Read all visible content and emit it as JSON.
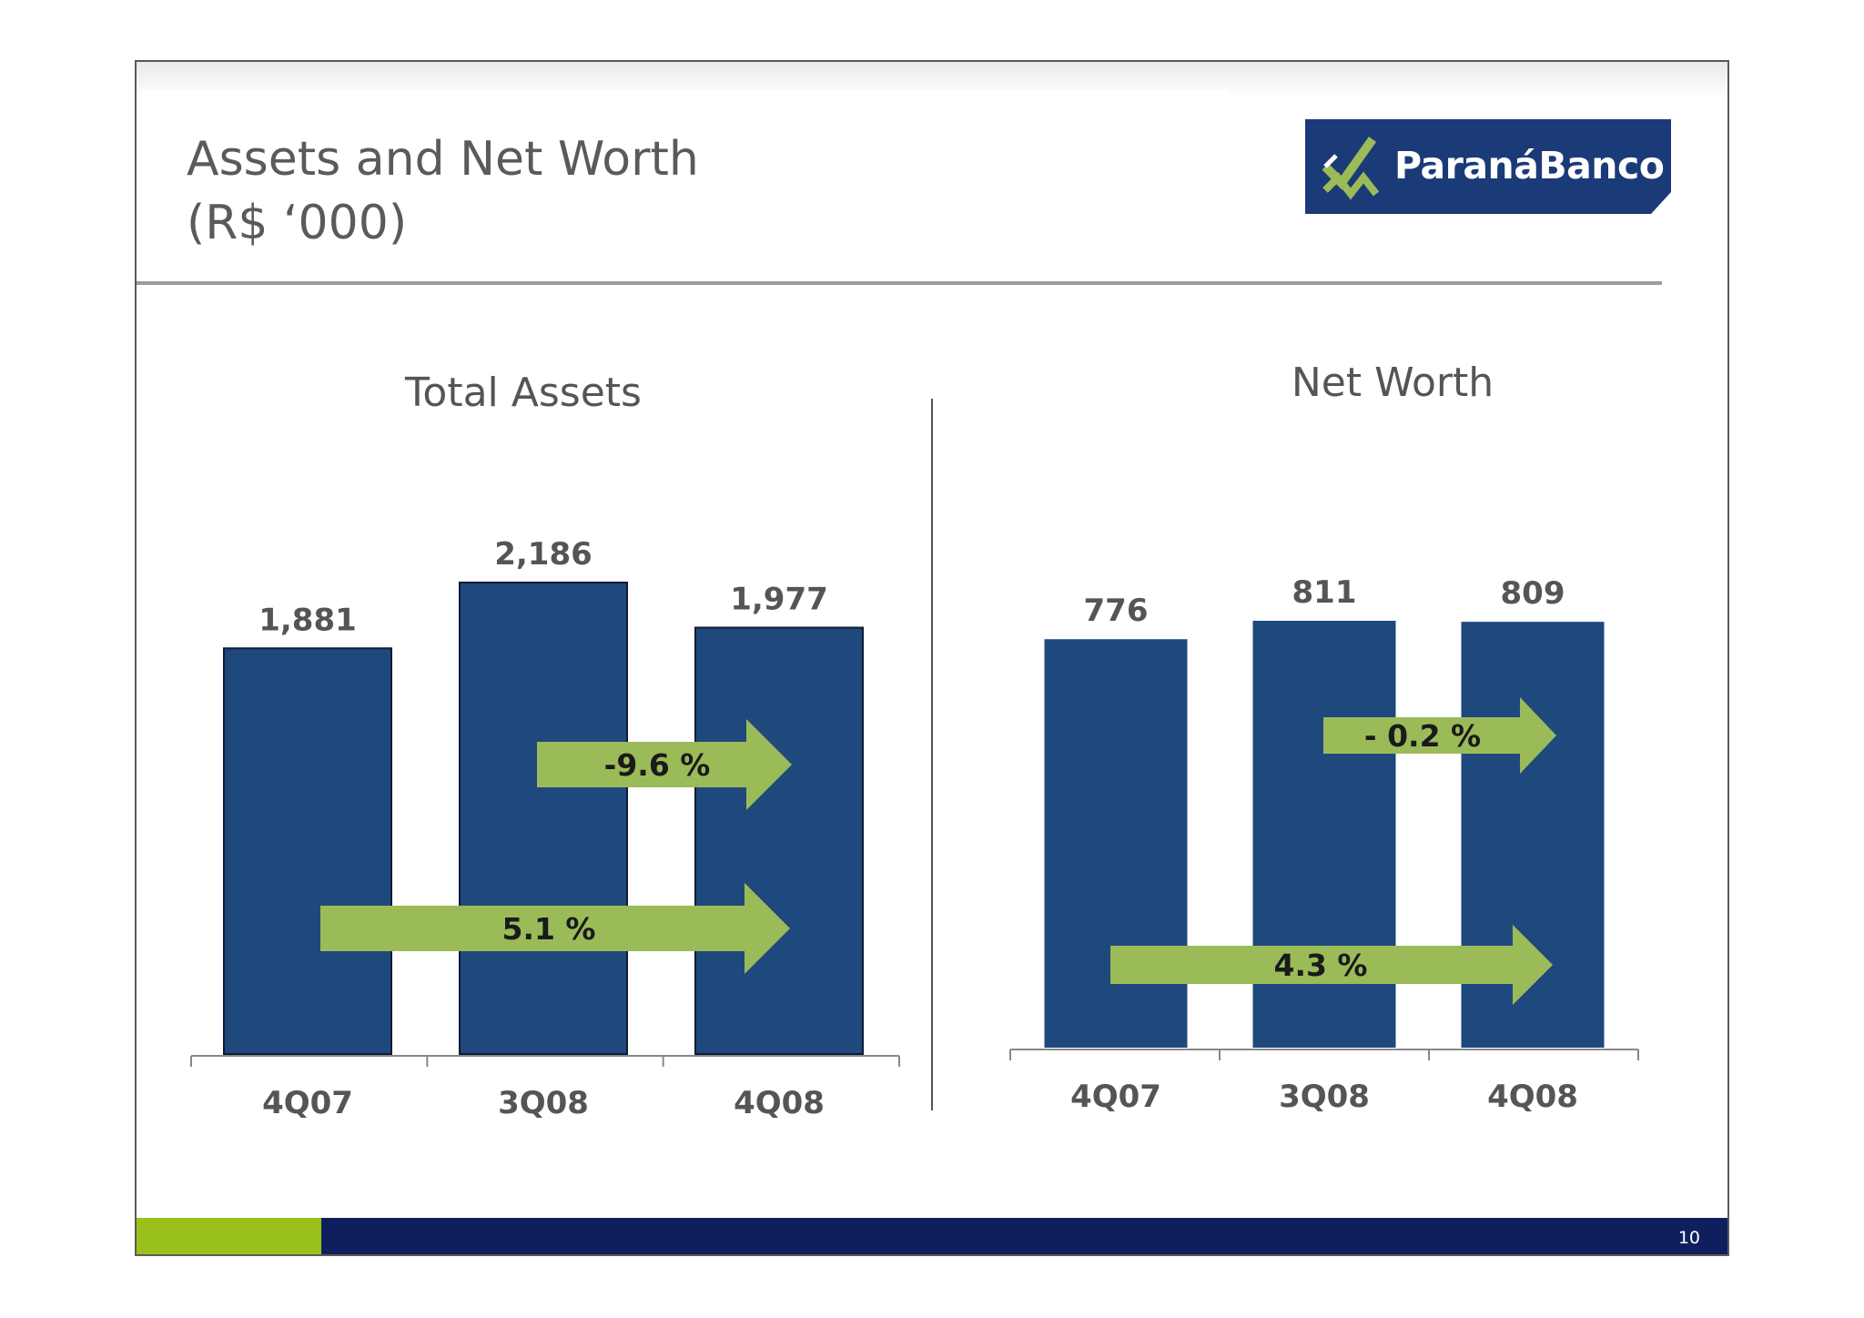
{
  "slide": {
    "title_line1": "Assets and Net Worth",
    "title_line2": "(R$ ‘000)",
    "logo_text": "ParanáBanco",
    "page_number": "10"
  },
  "colors": {
    "bar": "#1f497d",
    "arrow": "#9bbb59",
    "logo_bg": "#1b3a78",
    "footer_green": "#9ac11b",
    "footer_blue": "#0f1f5e"
  },
  "chart_data": [
    {
      "type": "bar",
      "title": "Total Assets",
      "categories": [
        "4Q07",
        "3Q08",
        "4Q08"
      ],
      "values": [
        1881,
        2186,
        1977
      ],
      "value_labels": [
        "1,881",
        "2,186",
        "1,977"
      ],
      "ylim": [
        0,
        2186
      ],
      "grid": false,
      "legend": "none",
      "annotations": [
        {
          "text": "-9.6 %",
          "from": "3Q08",
          "to": "4Q08",
          "value": -9.6
        },
        {
          "text": "5.1 %",
          "from": "4Q07",
          "to": "4Q08",
          "value": 5.1
        }
      ]
    },
    {
      "type": "bar",
      "title": "Net Worth",
      "categories": [
        "4Q07",
        "3Q08",
        "4Q08"
      ],
      "values": [
        776,
        811,
        809
      ],
      "value_labels": [
        "776",
        "811",
        "809"
      ],
      "ylim": [
        0,
        811
      ],
      "grid": false,
      "legend": "none",
      "annotations": [
        {
          "text": "- 0.2 %",
          "from": "3Q08",
          "to": "4Q08",
          "value": -0.2
        },
        {
          "text": "4.3 %",
          "from": "4Q07",
          "to": "4Q08",
          "value": 4.3
        }
      ]
    }
  ]
}
